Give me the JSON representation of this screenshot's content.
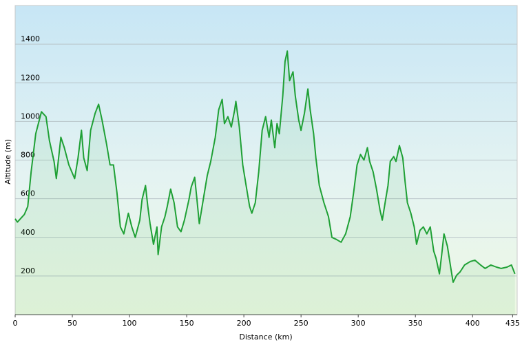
{
  "chart_data": {
    "type": "line",
    "xlabel": "Distance  (km)",
    "ylabel": "Altitude (m)",
    "x": [
      0,
      2,
      8,
      11,
      14,
      18,
      23,
      27,
      30,
      34,
      36,
      40,
      43,
      47,
      52,
      55,
      58,
      60,
      63,
      66,
      70,
      73,
      76,
      80,
      83,
      86,
      89,
      92,
      95,
      99,
      102,
      105,
      109,
      111,
      114,
      116,
      118,
      121,
      124,
      125,
      128,
      131,
      133,
      136,
      139,
      142,
      145,
      148,
      152,
      154,
      157,
      159,
      161,
      165,
      168,
      171,
      175,
      178,
      181,
      183,
      186,
      189,
      192,
      193,
      196,
      199,
      202,
      205,
      207,
      210,
      213,
      216,
      219,
      222,
      224,
      227,
      229,
      231,
      234,
      236,
      238,
      240,
      243,
      245,
      248,
      250,
      253,
      256,
      258,
      261,
      263,
      266,
      270,
      274,
      277,
      281,
      285,
      289,
      293,
      296,
      299,
      302,
      305,
      308,
      310,
      313,
      316,
      319,
      321,
      324,
      326,
      328,
      331,
      333,
      336,
      339,
      341,
      343,
      346,
      349,
      351,
      354,
      357,
      360,
      363,
      366,
      368,
      371,
      373,
      375,
      378,
      381,
      383,
      386,
      389,
      393,
      398,
      402,
      407,
      411,
      416,
      421,
      425,
      430,
      434,
      437
    ],
    "series": [
      {
        "color": "#1fa035",
        "values": [
          496,
          479,
          518,
          560,
          739,
          936,
          1050,
          1025,
          900,
          793,
          704,
          918,
          864,
          775,
          704,
          811,
          954,
          811,
          746,
          954,
          1043,
          1089,
          1007,
          882,
          775,
          775,
          632,
          454,
          418,
          525,
          454,
          400,
          489,
          596,
          668,
          561,
          471,
          364,
          454,
          311,
          454,
          507,
          561,
          650,
          579,
          454,
          429,
          489,
          596,
          661,
          711,
          596,
          471,
          614,
          721,
          793,
          918,
          1061,
          1114,
          989,
          1025,
          971,
          1061,
          1104,
          971,
          775,
          668,
          561,
          525,
          579,
          739,
          954,
          1025,
          918,
          1007,
          864,
          989,
          936,
          1132,
          1311,
          1364,
          1211,
          1257,
          1132,
          1007,
          954,
          1043,
          1168,
          1061,
          936,
          811,
          668,
          579,
          507,
          400,
          389,
          375,
          418,
          507,
          632,
          775,
          829,
          800,
          864,
          793,
          739,
          650,
          543,
          489,
          596,
          668,
          793,
          818,
          793,
          875,
          811,
          686,
          579,
          525,
          454,
          364,
          436,
          454,
          418,
          454,
          329,
          293,
          211,
          311,
          418,
          354,
          239,
          168,
          204,
          221,
          257,
          275,
          282,
          257,
          239,
          257,
          246,
          239,
          246,
          257,
          211
        ]
      }
    ],
    "xlim": [
      0,
      439
    ],
    "xticks": [
      0,
      50,
      100,
      150,
      200,
      250,
      300,
      350,
      400,
      435
    ],
    "ylim": [
      0,
      1600
    ],
    "yticks": [
      200,
      400,
      600,
      800,
      1000,
      1200,
      1400
    ],
    "grid": true
  }
}
